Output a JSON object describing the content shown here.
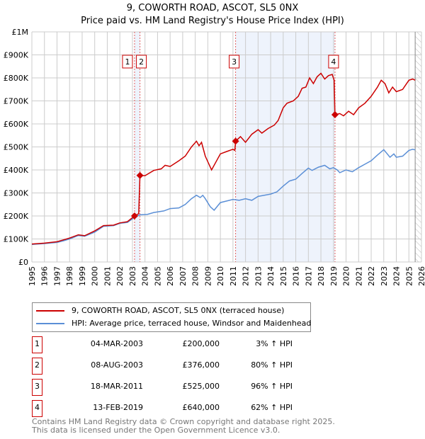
{
  "title": "9, COWORTH ROAD, ASCOT, SL5 0NX",
  "subtitle": "Price paid vs. HM Land Registry's House Price Index (HPI)",
  "chart_data": {
    "type": "line",
    "xlim": [
      1995,
      2026
    ],
    "ylim": [
      0,
      1000
    ],
    "x_ticks": [
      "1995",
      "1996",
      "1997",
      "1998",
      "1999",
      "2000",
      "2001",
      "2002",
      "2003",
      "2004",
      "2005",
      "2006",
      "2007",
      "2008",
      "2009",
      "2010",
      "2011",
      "2012",
      "2013",
      "2014",
      "2015",
      "2016",
      "2017",
      "2018",
      "2019",
      "2020",
      "2021",
      "2022",
      "2023",
      "2024",
      "2025",
      "2026"
    ],
    "y_ticks": [
      {
        "v": 0,
        "label": "£0"
      },
      {
        "v": 100,
        "label": "£100K"
      },
      {
        "v": 200,
        "label": "£200K"
      },
      {
        "v": 300,
        "label": "£300K"
      },
      {
        "v": 400,
        "label": "£400K"
      },
      {
        "v": 500,
        "label": "£500K"
      },
      {
        "v": 600,
        "label": "£600K"
      },
      {
        "v": 700,
        "label": "£700K"
      },
      {
        "v": 800,
        "label": "£800K"
      },
      {
        "v": 900,
        "label": "£900K"
      },
      {
        "v": 1000,
        "label": "£1M"
      }
    ],
    "grid": true,
    "shaded_ranges": [
      [
        2003.17,
        2003.6
      ],
      [
        2011.21,
        2019.12
      ]
    ],
    "forecast_start": 2025.5,
    "series": [
      {
        "name": "9, COWORTH ROAD, ASCOT, SL5 0NX (terraced house)",
        "color": "#cc0000",
        "x": [
          1995,
          1996,
          1997,
          1997.5,
          1998,
          1998.7,
          1999.2,
          2000,
          2000.7,
          2001.5,
          2002,
          2002.6,
          2003.17,
          2003.5,
          2003.6,
          2004,
          2004.7,
          2005.3,
          2005.6,
          2006,
          2006.7,
          2007.2,
          2007.7,
          2008.1,
          2008.3,
          2008.5,
          2008.8,
          2009.3,
          2009.6,
          2010,
          2010.5,
          2011,
          2011.15,
          2011.21,
          2011.6,
          2012,
          2012.5,
          2013,
          2013.3,
          2013.8,
          2014.3,
          2014.6,
          2015,
          2015.3,
          2015.8,
          2016.2,
          2016.5,
          2016.8,
          2017.1,
          2017.4,
          2017.7,
          2018,
          2018.3,
          2018.6,
          2018.9,
          2019.05,
          2019.12,
          2019.5,
          2019.8,
          2020.2,
          2020.6,
          2021,
          2021.5,
          2022,
          2022.5,
          2022.8,
          2023.1,
          2023.4,
          2023.7,
          2024,
          2024.5,
          2025,
          2025.3,
          2025.5
        ],
        "y": [
          78,
          82,
          88,
          96,
          104,
          118,
          114,
          135,
          158,
          160,
          170,
          175,
          200,
          210,
          376,
          375,
          398,
          405,
          420,
          415,
          440,
          460,
          500,
          525,
          505,
          520,
          460,
          400,
          430,
          470,
          480,
          490,
          485,
          525,
          545,
          520,
          555,
          575,
          560,
          580,
          595,
          615,
          670,
          690,
          700,
          720,
          755,
          760,
          800,
          775,
          805,
          820,
          795,
          810,
          815,
          790,
          640,
          645,
          635,
          655,
          640,
          670,
          690,
          720,
          760,
          790,
          775,
          735,
          760,
          740,
          750,
          790,
          795,
          790
        ]
      },
      {
        "name": "HPI: Average price, terraced house, Windsor and Maidenhead",
        "color": "#5b8fd6",
        "x": [
          1995,
          1996,
          1997,
          1997.5,
          1998,
          1998.7,
          1999.2,
          2000,
          2000.7,
          2001.5,
          2002,
          2002.6,
          2003.2,
          2003.6,
          2004.2,
          2004.7,
          2005.5,
          2006,
          2006.7,
          2007.2,
          2007.7,
          2008.1,
          2008.4,
          2008.6,
          2008.8,
          2009.2,
          2009.5,
          2010,
          2010.5,
          2011,
          2011.5,
          2012,
          2012.5,
          2013,
          2013.5,
          2014,
          2014.5,
          2015,
          2015.5,
          2016,
          2016.5,
          2017,
          2017.3,
          2017.8,
          2018.3,
          2018.7,
          2019,
          2019.3,
          2019.5,
          2020,
          2020.5,
          2021,
          2021.5,
          2022,
          2022.5,
          2023,
          2023.5,
          2023.8,
          2024,
          2024.5,
          2025,
          2025.3,
          2025.5
        ],
        "y": [
          76,
          80,
          85,
          92,
          100,
          115,
          112,
          130,
          155,
          158,
          168,
          172,
          195,
          205,
          207,
          215,
          222,
          232,
          235,
          250,
          275,
          290,
          280,
          290,
          275,
          240,
          225,
          258,
          265,
          272,
          268,
          275,
          268,
          285,
          290,
          295,
          305,
          330,
          352,
          360,
          385,
          408,
          398,
          412,
          420,
          405,
          410,
          400,
          388,
          400,
          392,
          410,
          425,
          440,
          465,
          488,
          455,
          470,
          455,
          460,
          485,
          490,
          487
        ]
      }
    ],
    "sales": [
      {
        "n": "1",
        "x": 2003.17,
        "y": 200
      },
      {
        "n": "2",
        "x": 2003.6,
        "y": 376
      },
      {
        "n": "3",
        "x": 2011.21,
        "y": 525
      },
      {
        "n": "4",
        "x": 2019.12,
        "y": 640
      }
    ]
  },
  "legend": {
    "property": "9, COWORTH ROAD, ASCOT, SL5 0NX (terraced house)",
    "hpi": "HPI: Average price, terraced house, Windsor and Maidenhead"
  },
  "transactions": [
    {
      "n": "1",
      "date": "04-MAR-2003",
      "price": "£200,000",
      "hpi": "3% ↑ HPI"
    },
    {
      "n": "2",
      "date": "08-AUG-2003",
      "price": "£376,000",
      "hpi": "80% ↑ HPI"
    },
    {
      "n": "3",
      "date": "18-MAR-2011",
      "price": "£525,000",
      "hpi": "96% ↑ HPI"
    },
    {
      "n": "4",
      "date": "13-FEB-2019",
      "price": "£640,000",
      "hpi": "62% ↑ HPI"
    }
  ],
  "footer": {
    "line1": "Contains HM Land Registry data © Crown copyright and database right 2025.",
    "line2": "This data is licensed under the Open Government Licence v3.0."
  }
}
